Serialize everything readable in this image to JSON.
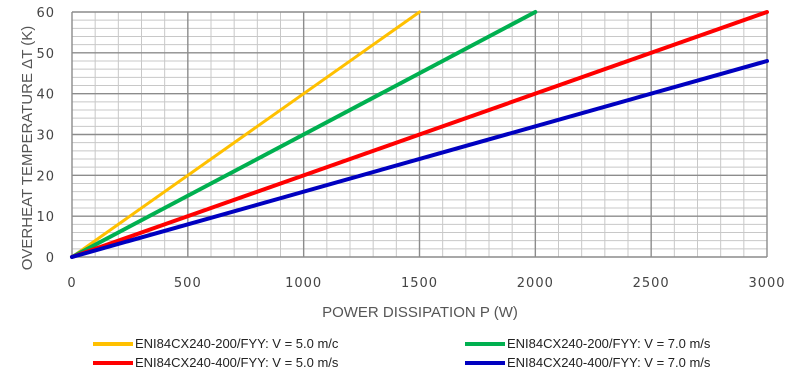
{
  "chart_data": {
    "type": "line",
    "title": "",
    "xlabel": "POWER DISSIPATION  P (W)",
    "ylabel": "OVERHEAT  TEMPERATURE   ΔT  (K)",
    "xlim": [
      0,
      3000
    ],
    "ylim": [
      0,
      60
    ],
    "x_ticks": [
      "0",
      "500",
      "1000",
      "1500",
      "2000",
      "2500",
      "3000"
    ],
    "y_ticks": [
      "0",
      "10",
      "20",
      "30",
      "40",
      "50",
      "60"
    ],
    "grid": true,
    "legend_position": "bottom",
    "series": [
      {
        "name": "ENI84CX240-200/FYY: V = 5.0 m/c",
        "color": "#FFC000",
        "x": [
          0,
          1500
        ],
        "y": [
          0,
          60
        ]
      },
      {
        "name": "ENI84CX240-200/FYY: V = 7.0 m/s",
        "color": "#00B050",
        "x": [
          0,
          2000
        ],
        "y": [
          0,
          60
        ]
      },
      {
        "name": "ENI84CX240-400/FYY: V = 5.0 m/s",
        "color": "#FF0000",
        "x": [
          0,
          3000
        ],
        "y": [
          0,
          60
        ]
      },
      {
        "name": "ENI84CX240-400/FYY: V = 7.0 m/s",
        "color": "#0000C0",
        "x": [
          0,
          3000
        ],
        "y": [
          0,
          48
        ]
      }
    ]
  }
}
